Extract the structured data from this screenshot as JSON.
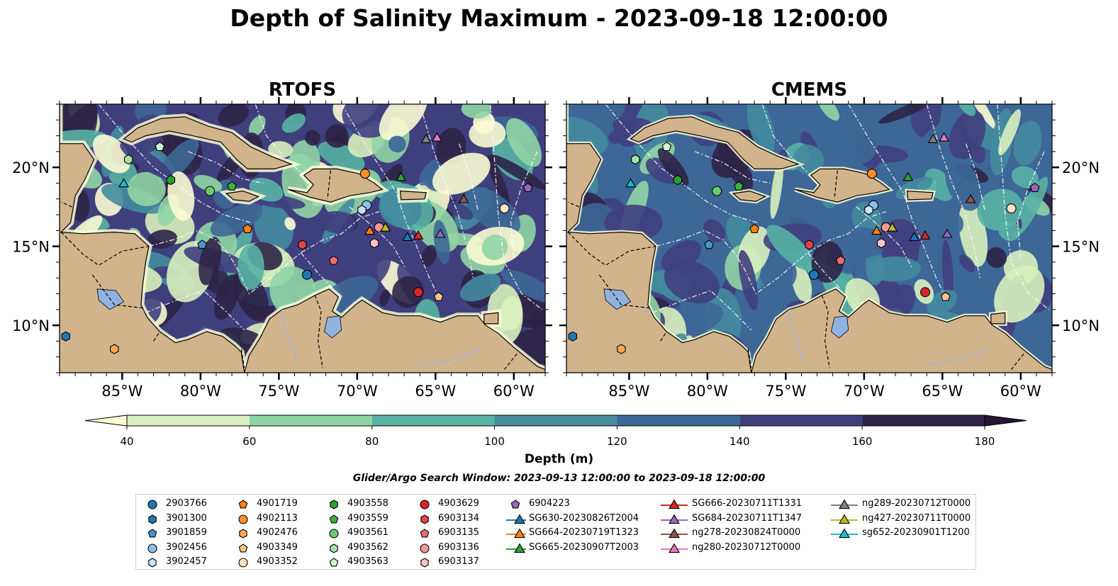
{
  "title": "Depth of Salinity Maximum - 2023-09-18 12:00:00",
  "maps": [
    {
      "title": "RTOFS"
    },
    {
      "title": "CMEMS"
    }
  ],
  "axes": {
    "x_ticks": [
      "85°W",
      "80°W",
      "75°W",
      "70°W",
      "65°W",
      "60°W"
    ],
    "x_tick_values": [
      -85,
      -80,
      -75,
      -70,
      -65,
      -60
    ],
    "y_ticks": [
      "20°N",
      "15°N",
      "10°N"
    ],
    "y_tick_values": [
      20,
      15,
      10
    ],
    "lon_range": [
      -89,
      -58
    ],
    "lat_range": [
      7,
      24
    ]
  },
  "colorbar": {
    "label": "Depth (m)",
    "ticks": [
      "40",
      "60",
      "80",
      "100",
      "120",
      "140",
      "160",
      "180"
    ],
    "values": [
      40,
      60,
      80,
      100,
      120,
      140,
      160,
      180
    ],
    "colors": [
      "#d8f0bd",
      "#90d5a5",
      "#58b3a5",
      "#448b9e",
      "#3d6797",
      "#403f7e",
      "#2e2447"
    ],
    "under_color": "#fbfbd3",
    "over_color": "#241733",
    "extend": "both"
  },
  "subtitle": "Glider/Argo Search Window: 2023-09-13 12:00:00 to 2023-09-18 12:00:00",
  "legend": [
    {
      "label": "2903766",
      "marker": "circle",
      "color": "#1f77b4"
    },
    {
      "label": "3901300",
      "marker": "hexagon",
      "color": "#1f77b4"
    },
    {
      "label": "3901859",
      "marker": "pentagon",
      "color": "#4a93c8"
    },
    {
      "label": "3902456",
      "marker": "circle",
      "color": "#8cc0e8"
    },
    {
      "label": "3902457",
      "marker": "hexagon",
      "color": "#c9e3f7"
    },
    {
      "label": "4901719",
      "marker": "pentagon",
      "color": "#ff7f0e"
    },
    {
      "label": "4902113",
      "marker": "circle",
      "color": "#ff8c2a"
    },
    {
      "label": "4902476",
      "marker": "hexagon",
      "color": "#ffa55c"
    },
    {
      "label": "4903349",
      "marker": "pentagon",
      "color": "#ffc48c"
    },
    {
      "label": "4903352",
      "marker": "circle",
      "color": "#ffe0c2"
    },
    {
      "label": "4903558",
      "marker": "hexagon",
      "color": "#2ca02c"
    },
    {
      "label": "4903559",
      "marker": "pentagon",
      "color": "#3fb13f"
    },
    {
      "label": "4903561",
      "marker": "circle",
      "color": "#6cc96c"
    },
    {
      "label": "4903562",
      "marker": "hexagon",
      "color": "#a4e3a4"
    },
    {
      "label": "4903563",
      "marker": "pentagon",
      "color": "#d2f3d2"
    },
    {
      "label": "4903629",
      "marker": "circle",
      "color": "#d62728"
    },
    {
      "label": "6903134",
      "marker": "hexagon",
      "color": "#e24445"
    },
    {
      "label": "6903135",
      "marker": "pentagon",
      "color": "#ec6c6d"
    },
    {
      "label": "6903136",
      "marker": "circle",
      "color": "#f59696"
    },
    {
      "label": "6903137",
      "marker": "hexagon",
      "color": "#fbc4c4"
    },
    {
      "label": "6904223",
      "marker": "pentagon",
      "color": "#9467bd"
    },
    {
      "label": "SG630-20230826T2004",
      "marker": "triangle-line",
      "color": "#1f77b4"
    },
    {
      "label": "SG664-20230719T1323",
      "marker": "triangle-line",
      "color": "#ff7f0e"
    },
    {
      "label": "SG665-20230907T2003",
      "marker": "triangle-line",
      "color": "#2ca02c"
    },
    {
      "label": "SG666-20230711T1331",
      "marker": "triangle-line",
      "color": "#d62728"
    },
    {
      "label": "SG684-20230711T1347",
      "marker": "triangle-line",
      "color": "#9467bd"
    },
    {
      "label": "ng278-20230824T0000",
      "marker": "triangle-line",
      "color": "#8c564b"
    },
    {
      "label": "ng280-20230712T0000",
      "marker": "triangle-line",
      "color": "#e377c2"
    },
    {
      "label": "ng289-20230712T0000",
      "marker": "triangle-line",
      "color": "#7f7f7f"
    },
    {
      "label": "ng427-20230711T0000",
      "marker": "triangle-line",
      "color": "#bcbd22"
    },
    {
      "label": "sg652-20230901T1200",
      "marker": "triangle-line",
      "color": "#17becf"
    }
  ],
  "observations": [
    {
      "id": "2903766",
      "lon": -73.2,
      "lat": 13.2
    },
    {
      "id": "3901300",
      "lon": -88.6,
      "lat": 9.3
    },
    {
      "id": "3901859",
      "lon": -79.9,
      "lat": 15.1
    },
    {
      "id": "3902456",
      "lon": -69.4,
      "lat": 17.6
    },
    {
      "id": "3902457",
      "lon": -69.7,
      "lat": 17.3
    },
    {
      "id": "4901719",
      "lon": -77.0,
      "lat": 16.1
    },
    {
      "id": "4902113",
      "lon": -69.5,
      "lat": 19.6
    },
    {
      "id": "4902476",
      "lon": -85.5,
      "lat": 8.5
    },
    {
      "id": "4903349",
      "lon": -64.8,
      "lat": 11.8
    },
    {
      "id": "4903352",
      "lon": -60.6,
      "lat": 17.4
    },
    {
      "id": "4903558",
      "lon": -81.9,
      "lat": 19.2
    },
    {
      "id": "4903559",
      "lon": -78.0,
      "lat": 18.8
    },
    {
      "id": "4903561",
      "lon": -79.4,
      "lat": 18.5
    },
    {
      "id": "4903562",
      "lon": -84.6,
      "lat": 20.5
    },
    {
      "id": "4903563",
      "lon": -82.6,
      "lat": 21.3
    },
    {
      "id": "4903629",
      "lon": -66.1,
      "lat": 12.1
    },
    {
      "id": "6903134",
      "lon": -73.5,
      "lat": 15.1
    },
    {
      "id": "6903135",
      "lon": -71.5,
      "lat": 14.1
    },
    {
      "id": "6903136",
      "lon": -68.6,
      "lat": 16.2
    },
    {
      "id": "6903137",
      "lon": -68.9,
      "lat": 15.2
    },
    {
      "id": "6904223",
      "lon": -59.1,
      "lat": 18.7
    },
    {
      "id": "SG630-20230826T2004",
      "lon": -66.8,
      "lat": 15.6
    },
    {
      "id": "SG664-20230719T1323",
      "lon": -69.2,
      "lat": 16.0
    },
    {
      "id": "SG665-20230907T2003",
      "lon": -67.2,
      "lat": 19.4
    },
    {
      "id": "SG666-20230711T1331",
      "lon": -66.1,
      "lat": 15.7
    },
    {
      "id": "SG684-20230711T1347",
      "lon": -64.7,
      "lat": 15.8
    },
    {
      "id": "ng278-20230824T0000",
      "lon": -63.2,
      "lat": 18.0
    },
    {
      "id": "ng280-20230712T0000",
      "lon": -64.9,
      "lat": 21.9
    },
    {
      "id": "ng289-20230712T0000",
      "lon": -65.6,
      "lat": 21.8
    },
    {
      "id": "ng427-20230711T0000",
      "lon": -68.2,
      "lat": 16.2
    },
    {
      "id": "sg652-20230901T1200",
      "lon": -84.9,
      "lat": 19.0
    }
  ]
}
